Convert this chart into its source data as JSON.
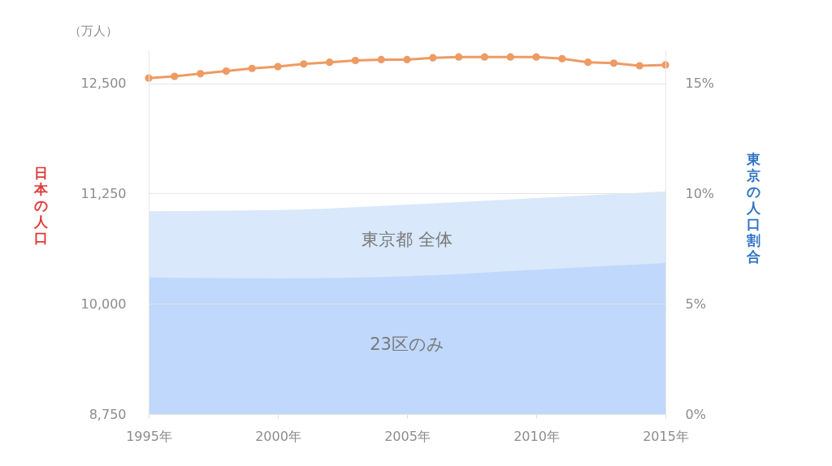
{
  "chart_data": {
    "type": "line",
    "ylabel": "日本の人口",
    "y2label": "東京の人口割合",
    "annotations": [
      "（万人）"
    ],
    "x": [
      1995,
      1996,
      1997,
      1998,
      1999,
      2000,
      2001,
      2002,
      2003,
      2004,
      2005,
      2006,
      2007,
      2008,
      2009,
      2010,
      2011,
      2012,
      2013,
      2014,
      2015
    ],
    "xlim": [
      1995,
      2015
    ],
    "xticks": [
      {
        "value": 1995,
        "label": "1995年"
      },
      {
        "value": 2000,
        "label": "2000年"
      },
      {
        "value": 2005,
        "label": "2005年"
      },
      {
        "value": 2010,
        "label": "2010年"
      },
      {
        "value": 2015,
        "label": "2015年"
      }
    ],
    "ylim": [
      8750,
      12875
    ],
    "yticks": [
      {
        "value": 8750,
        "label": "8,750"
      },
      {
        "value": 10000,
        "label": "10,000"
      },
      {
        "value": 11250,
        "label": "11,250"
      },
      {
        "value": 12500,
        "label": "12,500"
      }
    ],
    "y2lim": [
      0,
      16.5
    ],
    "y2ticks": [
      {
        "value": 0,
        "label": "0%"
      },
      {
        "value": 5,
        "label": "5%"
      },
      {
        "value": 10,
        "label": "10%"
      },
      {
        "value": 15,
        "label": "15%"
      }
    ],
    "series": [
      {
        "type": "area",
        "axis": "y2",
        "name": "東京都 全体",
        "color": "#d9e8fb",
        "x": [
          1995,
          2000,
          2005,
          2010,
          2015
        ],
        "values": [
          9.2,
          9.25,
          9.5,
          9.8,
          10.1
        ]
      },
      {
        "type": "area",
        "axis": "y2",
        "name": "23区のみ",
        "color": "#bfd8fb",
        "x": [
          1995,
          2000,
          2005,
          2010,
          2015
        ],
        "values": [
          6.2,
          6.15,
          6.25,
          6.55,
          6.85
        ]
      },
      {
        "color": "#ee9b63",
        "marker": "circle",
        "line_style": "solid",
        "values": [
          12560,
          12580,
          12610,
          12640,
          12670,
          12690,
          12720,
          12740,
          12760,
          12770,
          12770,
          12790,
          12800,
          12800,
          12800,
          12800,
          12780,
          12740,
          12730,
          12700,
          12710
        ]
      }
    ],
    "grid": "y"
  }
}
